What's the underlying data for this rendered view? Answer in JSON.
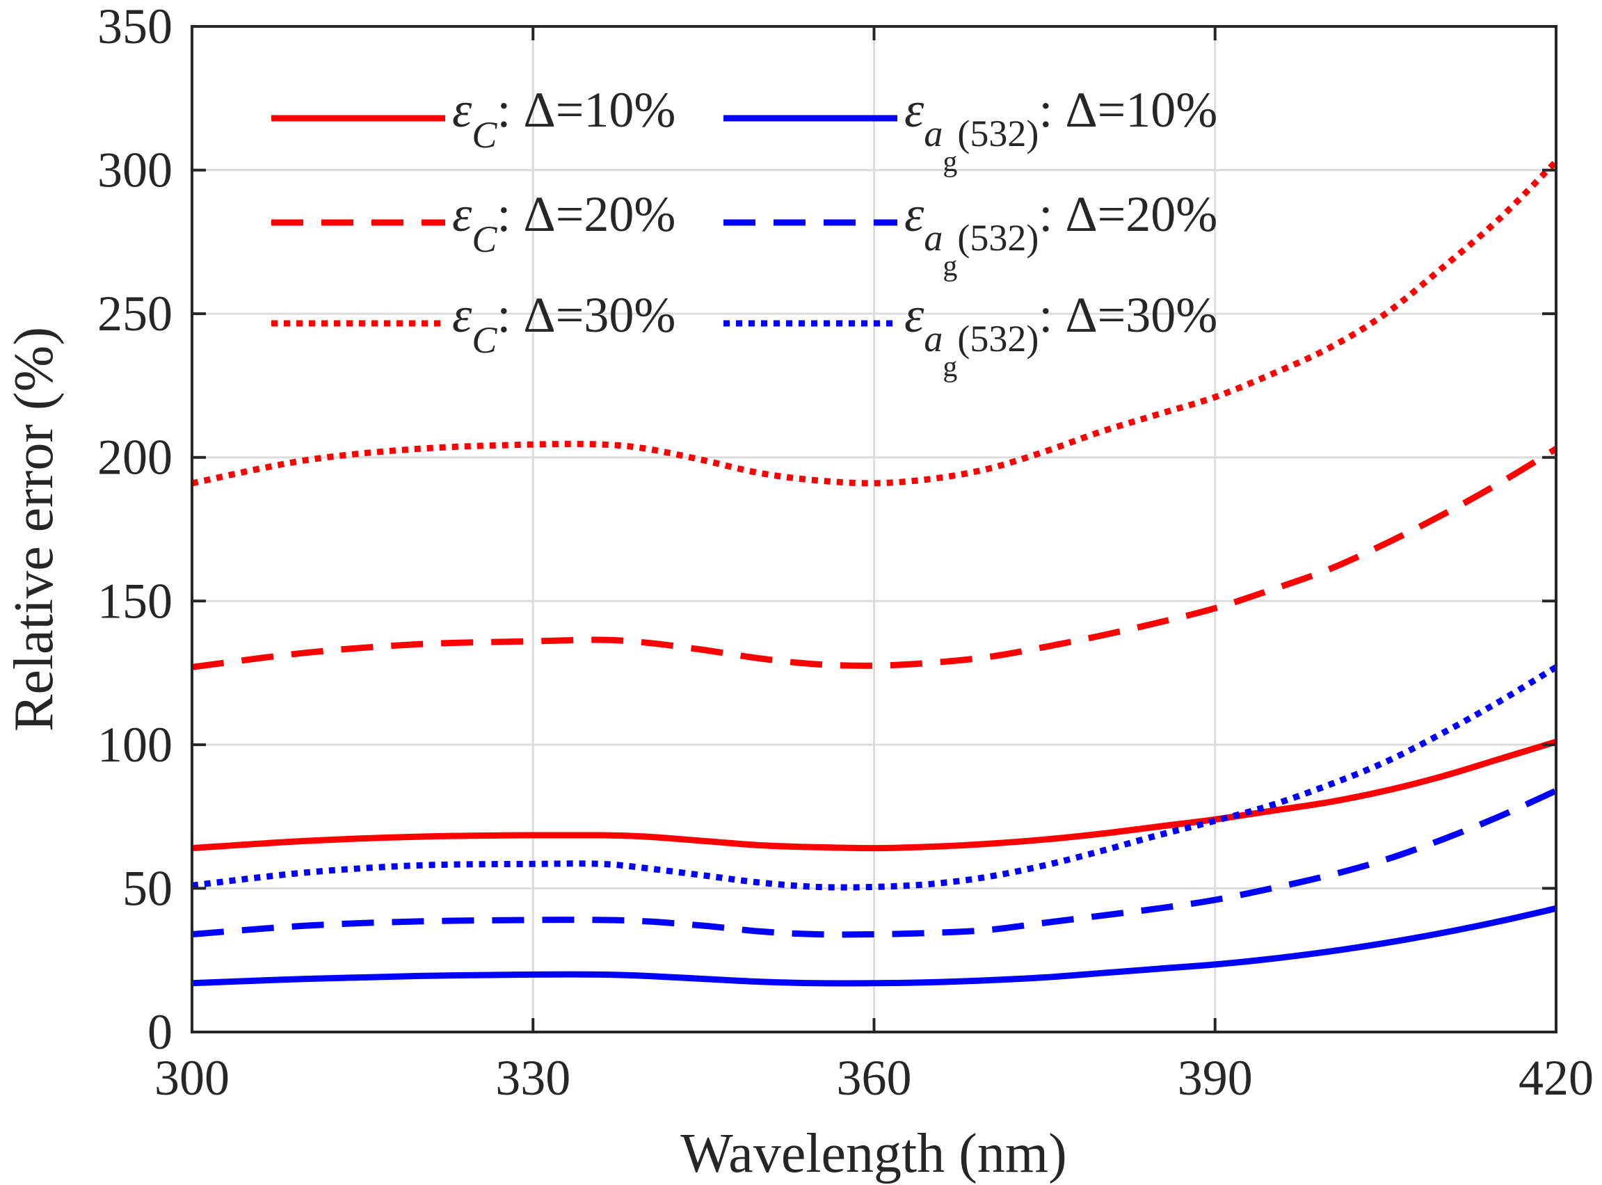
{
  "chart_data": {
    "type": "line",
    "xlabel": "Wavelength (nm)",
    "ylabel": "Relative error (%)",
    "xlim": [
      300,
      420
    ],
    "ylim": [
      0,
      350
    ],
    "xticks": [
      300,
      330,
      360,
      390,
      420
    ],
    "yticks": [
      0,
      50,
      100,
      150,
      200,
      250,
      300,
      350
    ],
    "grid": true,
    "legend_position": "top-left, two columns",
    "x": [
      300,
      310,
      320,
      330,
      336,
      340,
      345,
      350,
      355,
      360,
      365,
      370,
      375,
      380,
      385,
      390,
      395,
      400,
      405,
      410,
      415,
      420
    ],
    "series": [
      {
        "name": "ε_C: Δ=10%",
        "symbol": "ε",
        "subscript": "C",
        "suffix": ": Δ=10%",
        "color": "#ff0000",
        "dash": "solid",
        "values": [
          64,
          66.5,
          68,
          68.5,
          68.5,
          68,
          66.5,
          65,
          64.3,
          64,
          64.5,
          65.5,
          67,
          69,
          71.5,
          74,
          77,
          80,
          84,
          89,
          95,
          101
        ]
      },
      {
        "name": "ε_C: Δ=20%",
        "symbol": "ε",
        "subscript": "C",
        "suffix": ": Δ=20%",
        "color": "#ff0000",
        "dash": "dashed",
        "values": [
          127,
          132,
          135,
          136,
          136.5,
          135.5,
          133,
          130,
          128,
          127.5,
          128.5,
          130.5,
          134,
          138,
          142.5,
          147.5,
          154,
          161,
          170,
          180,
          191,
          203
        ]
      },
      {
        "name": "ε_C: Δ=30%",
        "symbol": "ε",
        "subscript": "C",
        "suffix": ": Δ=30%",
        "color": "#ff0000",
        "dash": "dotted",
        "values": [
          191,
          199,
          203,
          204.5,
          204.5,
          203,
          199,
          194.5,
          192,
          191,
          192.5,
          196,
          202,
          209,
          215,
          221,
          229,
          238,
          250,
          266,
          283,
          303
        ]
      },
      {
        "name": "ε_ag(532): Δ=10%",
        "symbol": "ε",
        "subscript": "a",
        "subsubscript": "g",
        "subscript_tail": "(532)",
        "suffix": ": Δ=10%",
        "color": "#0000ff",
        "dash": "solid",
        "values": [
          17,
          18.5,
          19.5,
          20,
          20,
          19.5,
          18.5,
          17.5,
          17,
          17,
          17.3,
          18,
          19,
          20.5,
          22,
          23.5,
          25.5,
          28,
          31,
          34.5,
          38.5,
          43
        ]
      },
      {
        "name": "ε_ag(532): Δ=20%",
        "symbol": "ε",
        "subscript": "a",
        "subsubscript": "g",
        "subscript_tail": "(532)",
        "suffix": ": Δ=20%",
        "color": "#0000ff",
        "dash": "dashed",
        "values": [
          34,
          37,
          38.5,
          39,
          39,
          38.5,
          37,
          35,
          34,
          34,
          34.5,
          35.5,
          38,
          40.5,
          43,
          46,
          50,
          54.5,
          60,
          67,
          75,
          84
        ]
      },
      {
        "name": "ε_ag(532): Δ=30%",
        "symbol": "ε",
        "subscript": "a",
        "subsubscript": "g",
        "subscript_tail": "(532)",
        "suffix": ": Δ=30%",
        "color": "#0000ff",
        "dash": "dotted",
        "values": [
          51,
          55.5,
          58,
          58.5,
          58.5,
          57,
          54.5,
          52,
          50.5,
          50.5,
          51.5,
          54,
          58,
          63,
          68.5,
          73.5,
          79,
          86,
          94,
          104,
          115,
          127
        ]
      }
    ]
  }
}
